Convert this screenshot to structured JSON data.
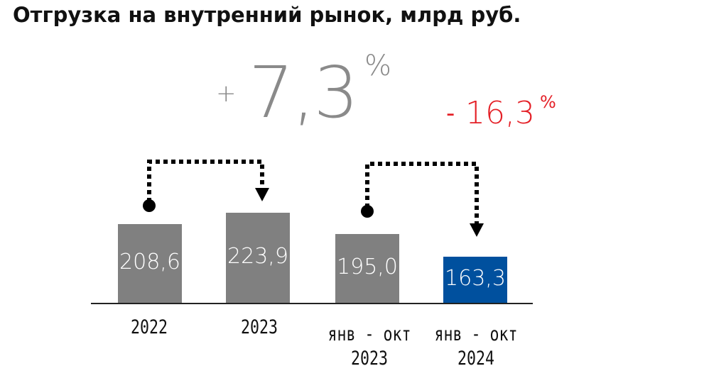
{
  "chart_data": {
    "type": "bar",
    "title": "Отгрузка на внутренний рынок, млрд руб.",
    "categories": [
      [
        "2022"
      ],
      [
        "2023"
      ],
      [
        "янв - окт",
        "2023"
      ],
      [
        "янв - окт",
        "2024"
      ]
    ],
    "values": [
      208.6,
      223.9,
      195.0,
      163.3
    ],
    "value_labels": [
      "208,6",
      "223,9",
      "195,0",
      "163,3"
    ],
    "colors": [
      "#808080",
      "#808080",
      "#808080",
      "#00509e"
    ],
    "annotations": [
      {
        "sign": "+",
        "value": "7,3",
        "unit": "%",
        "from": "2022",
        "to": "2023",
        "color": "#8a8a8a"
      },
      {
        "sign": "-",
        "value": "16,3",
        "unit": "%",
        "from": "янв - окт 2023",
        "to": "янв - окт 2024",
        "color": "#e41f26"
      }
    ]
  }
}
